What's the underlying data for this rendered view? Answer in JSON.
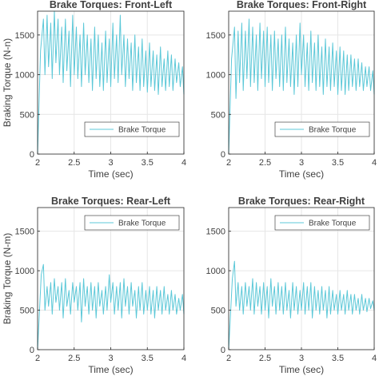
{
  "chart_data": [
    {
      "type": "line",
      "title": "Brake Torques: Front-Left",
      "xlabel": "Time (sec)",
      "ylabel": "Braking Torque (N-n)",
      "xlim": [
        2,
        4
      ],
      "ylim": [
        0,
        1800
      ],
      "xticks": [
        "2",
        "2.5",
        "3",
        "3.5",
        "4"
      ],
      "yticks": [
        "0",
        "500",
        "1000",
        "1500"
      ],
      "grid": true,
      "legend": "bottom-right",
      "series": [
        {
          "name": "Brake Torque",
          "color": "#5cc8d8",
          "x": [
            2.0,
            2.04,
            2.08,
            2.1,
            2.13,
            2.15,
            2.18,
            2.2,
            2.23,
            2.25,
            2.28,
            2.3,
            2.33,
            2.35,
            2.38,
            2.4,
            2.43,
            2.45,
            2.48,
            2.5,
            2.53,
            2.55,
            2.58,
            2.6,
            2.63,
            2.65,
            2.68,
            2.7,
            2.73,
            2.75,
            2.78,
            2.8,
            2.83,
            2.85,
            2.88,
            2.9,
            2.93,
            2.95,
            2.98,
            3.0,
            3.03,
            3.05,
            3.08,
            3.1,
            3.13,
            3.15,
            3.18,
            3.2,
            3.23,
            3.25,
            3.28,
            3.3,
            3.33,
            3.35,
            3.38,
            3.4,
            3.43,
            3.45,
            3.48,
            3.5,
            3.53,
            3.55,
            3.58,
            3.6,
            3.63,
            3.65,
            3.68,
            3.7,
            3.73,
            3.75,
            3.78,
            3.8,
            3.83,
            3.85,
            3.88,
            3.9,
            3.93,
            3.95,
            3.98,
            4.0
          ],
          "y": [
            0,
            1300,
            1700,
            1000,
            1750,
            1100,
            1650,
            950,
            1800,
            1150,
            1700,
            1000,
            1600,
            900,
            1700,
            1050,
            1550,
            850,
            1750,
            1000,
            1600,
            950,
            1500,
            850,
            1650,
            1000,
            1500,
            900,
            1450,
            800,
            1600,
            950,
            1500,
            850,
            1400,
            800,
            1550,
            900,
            1450,
            850,
            1650,
            950,
            1500,
            900,
            1750,
            1000,
            1500,
            850,
            1450,
            950,
            1400,
            800,
            1500,
            900,
            1350,
            800,
            1450,
            850,
            1300,
            780,
            1400,
            850,
            1300,
            800,
            1250,
            750,
            1350,
            850,
            1200,
            800,
            1300,
            850,
            1250,
            800,
            1200,
            900,
            1150,
            850,
            1100,
            750
          ]
        }
      ]
    },
    {
      "type": "line",
      "title": "Brake Torques: Front-Right",
      "xlabel": "Time (sec)",
      "ylabel": "",
      "xlim": [
        2,
        4
      ],
      "ylim": [
        0,
        1800
      ],
      "xticks": [
        "2",
        "2.5",
        "3",
        "3.5",
        "4"
      ],
      "yticks": [
        "0",
        "500",
        "1000",
        "1500"
      ],
      "grid": true,
      "legend": "bottom-right",
      "series": [
        {
          "name": "Brake Torque",
          "color": "#5cc8d8",
          "x": [
            2.0,
            2.04,
            2.08,
            2.1,
            2.13,
            2.15,
            2.18,
            2.2,
            2.23,
            2.25,
            2.28,
            2.3,
            2.33,
            2.35,
            2.38,
            2.4,
            2.43,
            2.45,
            2.48,
            2.5,
            2.53,
            2.55,
            2.58,
            2.6,
            2.63,
            2.65,
            2.68,
            2.7,
            2.73,
            2.75,
            2.78,
            2.8,
            2.83,
            2.85,
            2.88,
            2.9,
            2.93,
            2.95,
            2.98,
            3.0,
            3.03,
            3.05,
            3.08,
            3.1,
            3.13,
            3.15,
            3.18,
            3.2,
            3.23,
            3.25,
            3.28,
            3.3,
            3.33,
            3.35,
            3.38,
            3.4,
            3.43,
            3.45,
            3.48,
            3.5,
            3.53,
            3.55,
            3.58,
            3.6,
            3.63,
            3.65,
            3.68,
            3.7,
            3.73,
            3.75,
            3.78,
            3.8,
            3.83,
            3.85,
            3.88,
            3.9,
            3.93,
            3.95,
            3.98,
            4.0
          ],
          "y": [
            0,
            1200,
            1600,
            700,
            1550,
            900,
            1650,
            800,
            1550,
            950,
            1700,
            850,
            1600,
            900,
            1500,
            800,
            1650,
            950,
            1550,
            850,
            1600,
            900,
            1500,
            800,
            1550,
            950,
            1450,
            850,
            1500,
            800,
            1600,
            900,
            1450,
            850,
            1400,
            750,
            1500,
            850,
            1650,
            1000,
            1500,
            850,
            1400,
            800,
            1550,
            900,
            1400,
            800,
            1500,
            850,
            1350,
            750,
            1450,
            850,
            1350,
            800,
            1400,
            850,
            1300,
            750,
            1350,
            800,
            1300,
            750,
            1250,
            800,
            1250,
            850,
            1200,
            800,
            1200,
            850,
            1150,
            800,
            1100,
            850,
            1100,
            800,
            1050,
            750
          ]
        }
      ]
    },
    {
      "type": "line",
      "title": "Brake Torques: Rear-Left",
      "xlabel": "Time (sec)",
      "ylabel": "Braking Torque (N-m)",
      "xlim": [
        2,
        4
      ],
      "ylim": [
        0,
        1800
      ],
      "xticks": [
        "2",
        "2.5",
        "3",
        "3.5",
        "4"
      ],
      "yticks": [
        "0",
        "500",
        "1000",
        "1500"
      ],
      "grid": true,
      "legend": "top-right",
      "series": [
        {
          "name": "Brake Torque",
          "color": "#5cc8d8",
          "x": [
            2.0,
            2.05,
            2.08,
            2.1,
            2.13,
            2.15,
            2.18,
            2.2,
            2.23,
            2.25,
            2.28,
            2.3,
            2.33,
            2.35,
            2.38,
            2.4,
            2.43,
            2.45,
            2.48,
            2.5,
            2.53,
            2.55,
            2.58,
            2.6,
            2.63,
            2.65,
            2.68,
            2.7,
            2.73,
            2.75,
            2.78,
            2.8,
            2.83,
            2.85,
            2.88,
            2.9,
            2.93,
            2.95,
            2.98,
            3.0,
            3.03,
            3.05,
            3.08,
            3.1,
            3.13,
            3.15,
            3.18,
            3.2,
            3.23,
            3.25,
            3.28,
            3.3,
            3.33,
            3.35,
            3.38,
            3.4,
            3.43,
            3.45,
            3.48,
            3.5,
            3.53,
            3.55,
            3.58,
            3.6,
            3.63,
            3.65,
            3.68,
            3.7,
            3.73,
            3.75,
            3.78,
            3.8,
            3.83,
            3.85,
            3.88,
            3.9,
            3.93,
            3.95,
            3.98,
            4.0
          ],
          "y": [
            0,
            950,
            1080,
            500,
            800,
            550,
            850,
            450,
            900,
            600,
            800,
            500,
            850,
            400,
            900,
            550,
            750,
            450,
            850,
            600,
            800,
            500,
            850,
            350,
            900,
            550,
            800,
            450,
            850,
            500,
            800,
            400,
            850,
            550,
            750,
            450,
            800,
            500,
            950,
            600,
            850,
            450,
            800,
            500,
            850,
            400,
            900,
            550,
            800,
            450,
            850,
            550,
            750,
            400,
            800,
            500,
            850,
            450,
            750,
            500,
            800,
            450,
            750,
            400,
            800,
            500,
            750,
            450,
            800,
            500,
            700,
            450,
            750,
            500,
            700,
            450,
            650,
            500,
            700,
            450
          ]
        }
      ]
    },
    {
      "type": "line",
      "title": "Brake Torques: Rear-Right",
      "xlabel": "Time (sec)",
      "ylabel": "",
      "xlim": [
        2,
        4
      ],
      "ylim": [
        0,
        1800
      ],
      "xticks": [
        "2",
        "2.5",
        "3",
        "3.5",
        "4"
      ],
      "yticks": [
        "0",
        "500",
        "1000",
        "1500"
      ],
      "grid": true,
      "legend": "top-right",
      "series": [
        {
          "name": "Brake Torque",
          "color": "#5cc8d8",
          "x": [
            2.0,
            2.05,
            2.08,
            2.1,
            2.13,
            2.15,
            2.18,
            2.2,
            2.23,
            2.25,
            2.28,
            2.3,
            2.33,
            2.35,
            2.38,
            2.4,
            2.43,
            2.45,
            2.48,
            2.5,
            2.53,
            2.55,
            2.58,
            2.6,
            2.63,
            2.65,
            2.68,
            2.7,
            2.73,
            2.75,
            2.78,
            2.8,
            2.83,
            2.85,
            2.88,
            2.9,
            2.93,
            2.95,
            2.98,
            3.0,
            3.03,
            3.05,
            3.08,
            3.1,
            3.13,
            3.15,
            3.18,
            3.2,
            3.23,
            3.25,
            3.28,
            3.3,
            3.33,
            3.35,
            3.38,
            3.4,
            3.43,
            3.45,
            3.48,
            3.5,
            3.53,
            3.55,
            3.58,
            3.6,
            3.63,
            3.65,
            3.68,
            3.7,
            3.73,
            3.75,
            3.78,
            3.8,
            3.83,
            3.85,
            3.88,
            3.9,
            3.93,
            3.95,
            3.98,
            4.0
          ],
          "y": [
            0,
            900,
            1120,
            550,
            850,
            500,
            800,
            450,
            850,
            550,
            800,
            500,
            900,
            450,
            850,
            550,
            800,
            450,
            850,
            500,
            800,
            400,
            900,
            550,
            800,
            450,
            850,
            500,
            800,
            450,
            850,
            500,
            750,
            400,
            850,
            500,
            800,
            450,
            750,
            500,
            850,
            450,
            800,
            500,
            850,
            400,
            800,
            500,
            750,
            450,
            800,
            500,
            750,
            400,
            800,
            450,
            750,
            500,
            700,
            450,
            750,
            500,
            700,
            450,
            750,
            500,
            700,
            450,
            700,
            500,
            650,
            450,
            700,
            500,
            650,
            480,
            650,
            520,
            620,
            500
          ]
        }
      ]
    }
  ]
}
